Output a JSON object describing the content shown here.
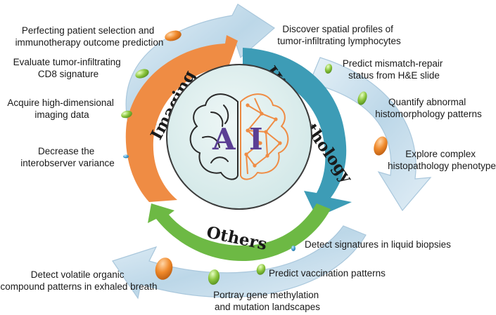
{
  "center": {
    "letter_left": "A",
    "letter_right": "I"
  },
  "segments": {
    "imaging": "Imaging",
    "histopathology": "Histopathology",
    "others": "Others"
  },
  "labels": {
    "imaging_1": [
      "Perfecting patient selection and",
      "immunotherapy outcome prediction"
    ],
    "imaging_2": [
      "Evaluate tumor-infiltrating",
      "CD8 signature"
    ],
    "imaging_3": [
      "Acquire high-dimensional",
      "imaging data"
    ],
    "imaging_4": [
      "Decrease the",
      "interobserver variance"
    ],
    "histo_1": [
      "Discover spatial profiles of",
      "tumor-infiltrating lymphocytes"
    ],
    "histo_2": [
      "Predict mismatch-repair",
      "status from H&E slide"
    ],
    "histo_3": [
      "Quantify abnormal",
      "histomorphology patterns"
    ],
    "histo_4": [
      "Explore complex",
      "histopathology phenotype"
    ],
    "others_1": [
      "Detect signatures in liquid biopsies"
    ],
    "others_2": [
      "Predict vaccination patterns"
    ],
    "others_3": [
      "Portray gene methylation",
      "and mutation landscapes"
    ],
    "others_4": [
      "Detect volatile organic",
      "compound patterns in exhaled breath"
    ]
  },
  "colors": {
    "imaging": "#ef8c44",
    "histopathology": "#3d9cb6",
    "others": "#6db944",
    "outer_arrow": "#c9dfed",
    "center_disc": "#d9ecec",
    "brain_left": "#2a2a2a",
    "brain_right": "#ef8c44"
  }
}
